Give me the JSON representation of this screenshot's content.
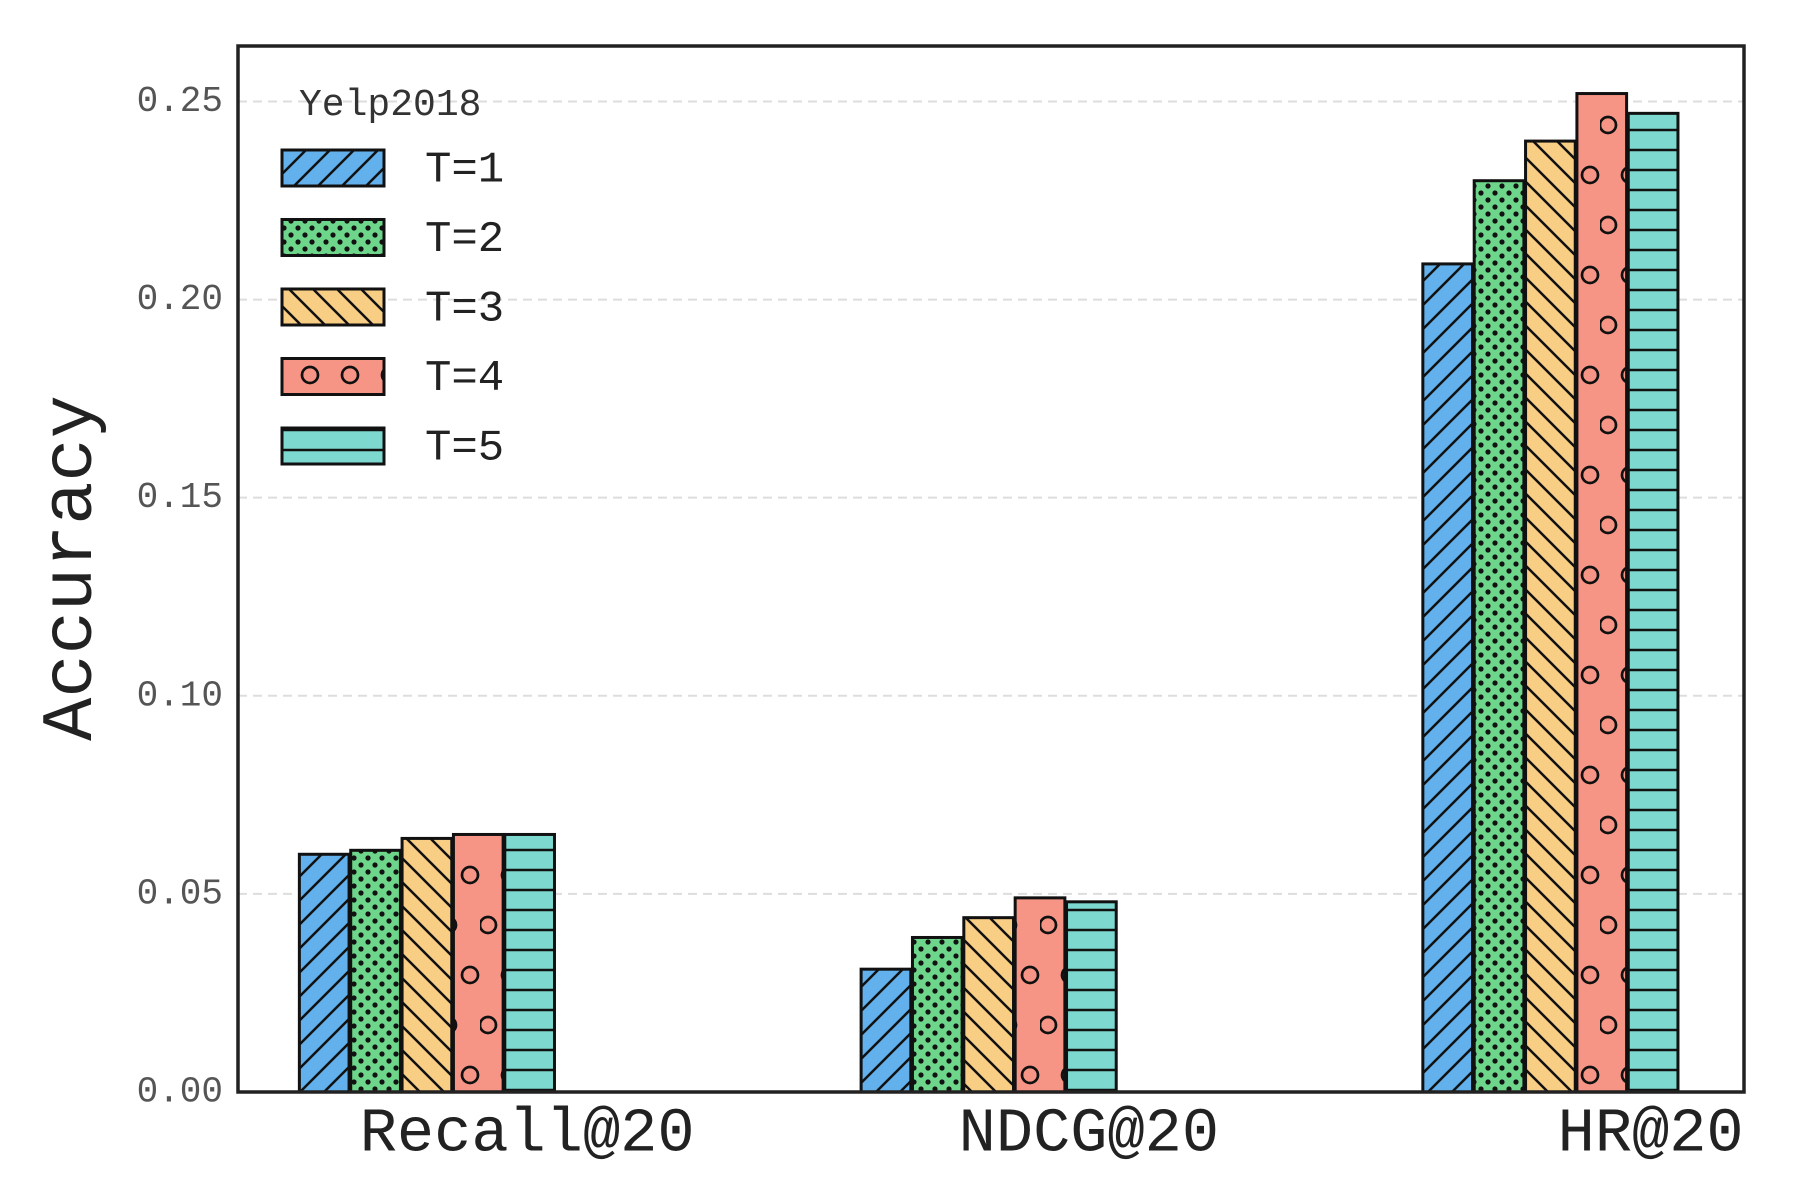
{
  "chart_data": {
    "type": "bar",
    "categories": [
      "Recall@20",
      "NDCG@20",
      "HR@20"
    ],
    "y_label": "Accuracy",
    "legend_title": "Yelp2018",
    "legend_loc": "upper left",
    "grid": true,
    "ylim": [
      0,
      0.264
    ],
    "yticks": [
      {
        "value": 0,
        "label": "0.00"
      },
      0.05,
      {
        "value": 0.1,
        "label": "0.10"
      },
      0.15,
      {
        "value": 0.2,
        "label": "0.20"
      },
      0.25
    ],
    "series": [
      {
        "name": "T=1",
        "color": "#62b0ec",
        "hatch": "/",
        "values": [
          0.06,
          0.031,
          0.209
        ]
      },
      {
        "name": "T=2",
        "color": "#6dd68a",
        "hatch": ".",
        "values": [
          0.061,
          0.039,
          0.23
        ]
      },
      {
        "name": "T=3",
        "color": "#f8cd84",
        "hatch": "\\",
        "values": [
          0.064,
          0.044,
          0.24
        ]
      },
      {
        "name": "T=4",
        "color": "#f69485",
        "hatch": "o",
        "values": [
          0.065,
          0.049,
          0.252
        ]
      },
      {
        "name": "T=5",
        "color": "#7dd8cf",
        "hatch": "-",
        "values": [
          0.065,
          0.048,
          0.247
        ]
      }
    ]
  }
}
